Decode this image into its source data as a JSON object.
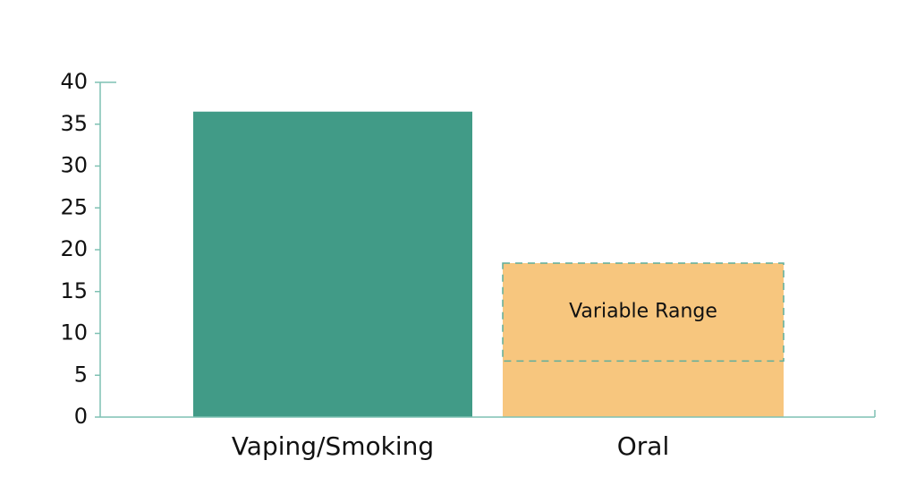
{
  "chart_data": {
    "type": "bar",
    "categories": [
      "Vaping/Smoking",
      "Oral"
    ],
    "values": [
      36.5,
      18.4
    ],
    "colors": [
      "#419b87",
      "#f7c67e"
    ],
    "variable_range": {
      "label": "Variable Range",
      "low": 6.7,
      "high": 18.4
    },
    "ylim": [
      0,
      40
    ],
    "yticks": [
      0,
      5,
      10,
      15,
      20,
      25,
      30,
      35,
      40
    ]
  }
}
